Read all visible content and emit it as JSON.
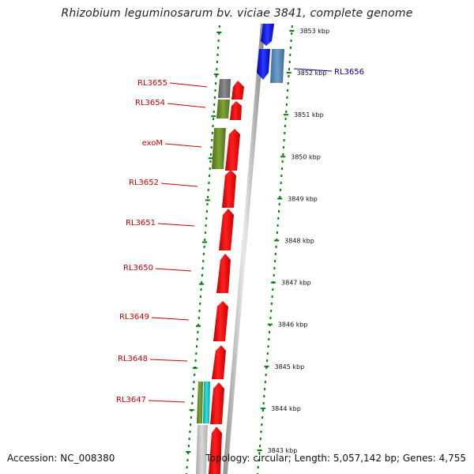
{
  "title": "Rhizobium leguminosarum bv. viciae 3841, complete genome",
  "accession": "Accession: NC_008380",
  "topology": "Topology: circular; Length: 5,057,142 bp; Genes: 4,755",
  "colors": {
    "forward_cds": "#ff0000",
    "reverse_cds": "#0000ff",
    "reverse_cds_alt": "#4682b4",
    "olive_feature": "#6b8e23",
    "gray_feature": "#808080",
    "teal_feature": "#00bfbf",
    "light_gray_feature": "#c0c0c0",
    "dotted_ring": "#008000",
    "backbone": "#808080",
    "forward_label": "#cc0000",
    "reverse_label": "#0000aa"
  },
  "scale_ticks": [
    "3853 kbp",
    "3852 kbp",
    "3851 kbp",
    "3850 kbp",
    "3849 kbp",
    "3848 kbp",
    "3847 kbp",
    "3846 kbp",
    "3845 kbp",
    "3844 kbp",
    "3843 kbp"
  ],
  "gene_labels": [
    {
      "name": "RL3656",
      "strand": "reverse"
    },
    {
      "name": "RL3655",
      "strand": "forward"
    },
    {
      "name": "RL3654",
      "strand": "forward"
    },
    {
      "name": "exoM",
      "strand": "forward"
    },
    {
      "name": "RL3652",
      "strand": "forward"
    },
    {
      "name": "RL3651",
      "strand": "forward"
    },
    {
      "name": "RL3650",
      "strand": "forward"
    },
    {
      "name": "RL3649",
      "strand": "forward"
    },
    {
      "name": "RL3648",
      "strand": "forward"
    },
    {
      "name": "RL3647",
      "strand": "forward"
    }
  ]
}
